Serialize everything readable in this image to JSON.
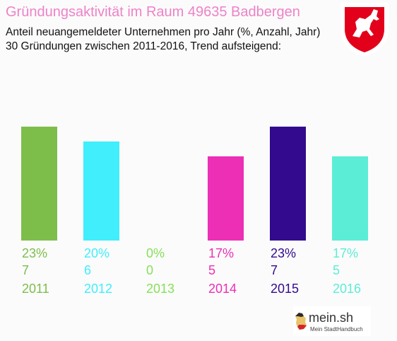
{
  "title": "Gründungsaktivität im Raum 49635 Badbergen",
  "subtitle_line1": "Anteil neuangemeldeter Unternehmen pro Jahr (%, Anzahl, Jahr)",
  "subtitle_line2": "30 Gründungen zwischen 2011-2016, Trend aufsteigend:",
  "brand": {
    "name": "mein.sh",
    "tagline": "Mein StadtHandbuch"
  },
  "crest": {
    "icon": "lower-saxony-horse-crest",
    "background": "#ffffff",
    "field": "#e3001b"
  },
  "chart_data": {
    "type": "bar",
    "categories": [
      "2011",
      "2012",
      "2013",
      "2014",
      "2015",
      "2016"
    ],
    "values": [
      23,
      20,
      0,
      17,
      23,
      17
    ],
    "value_labels": [
      "23%",
      "20%",
      "0%",
      "17%",
      "23%",
      "17%"
    ],
    "counts": [
      "7",
      "6",
      "0",
      "5",
      "7",
      "5"
    ],
    "colors": [
      "#7dbe4b",
      "#40eefc",
      "#86e058",
      "#ec2fb5",
      "#330a8e",
      "#5cedd6"
    ],
    "ylim": [
      0,
      23
    ]
  }
}
